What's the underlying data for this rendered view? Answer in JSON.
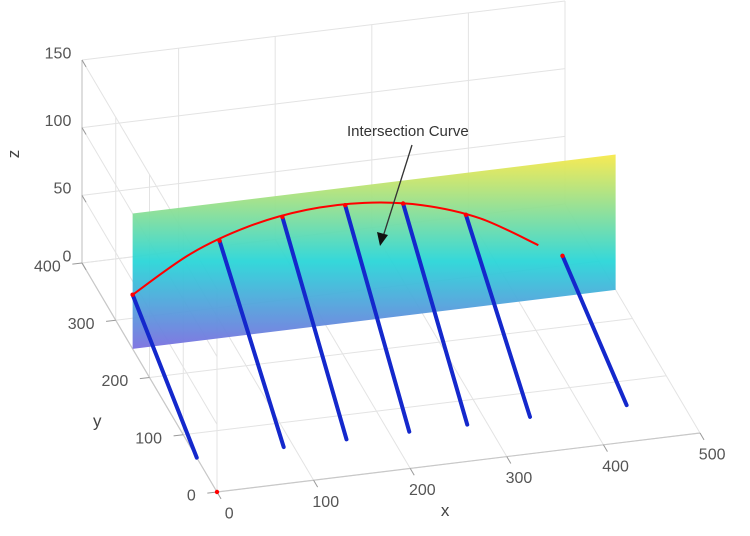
{
  "chart_data": {
    "type": "surface",
    "xlabel": "x",
    "ylabel": "y",
    "zlabel": "z",
    "xlim": [
      0,
      500
    ],
    "ylim": [
      0,
      400
    ],
    "zlim": [
      0,
      150
    ],
    "x_ticks": [
      "0",
      "100",
      "200",
      "300",
      "400",
      "500"
    ],
    "y_ticks": [
      "0",
      "100",
      "200",
      "300",
      "400"
    ],
    "z_ticks": [
      "0",
      "50",
      "100",
      "150"
    ],
    "grid": true,
    "colormap": [
      "#7b6fe0",
      "#2ad6d8",
      "#f7e94b"
    ],
    "plane": {
      "y": 250,
      "x_range": [
        0,
        500
      ],
      "z_range": [
        0,
        100
      ]
    },
    "curve_color": "#ff0000",
    "stem_color": "#1428cc",
    "intersection_curve": [
      {
        "x": 0,
        "y": 250,
        "z": 40
      },
      {
        "x": 60,
        "y": 250,
        "z": 65
      },
      {
        "x": 120,
        "y": 250,
        "z": 80
      },
      {
        "x": 180,
        "y": 250,
        "z": 87
      },
      {
        "x": 240,
        "y": 250,
        "z": 87
      },
      {
        "x": 300,
        "y": 250,
        "z": 80
      },
      {
        "x": 360,
        "y": 250,
        "z": 65
      },
      {
        "x": 420,
        "y": 250,
        "z": 40
      }
    ],
    "stems": [
      {
        "x": 0,
        "z": 40
      },
      {
        "x": 90,
        "z": 72
      },
      {
        "x": 155,
        "z": 84
      },
      {
        "x": 220,
        "z": 87
      },
      {
        "x": 280,
        "z": 83
      },
      {
        "x": 345,
        "z": 69
      },
      {
        "x": 445,
        "z": 30
      }
    ],
    "annotation": {
      "text": "Intersection Curve"
    }
  }
}
